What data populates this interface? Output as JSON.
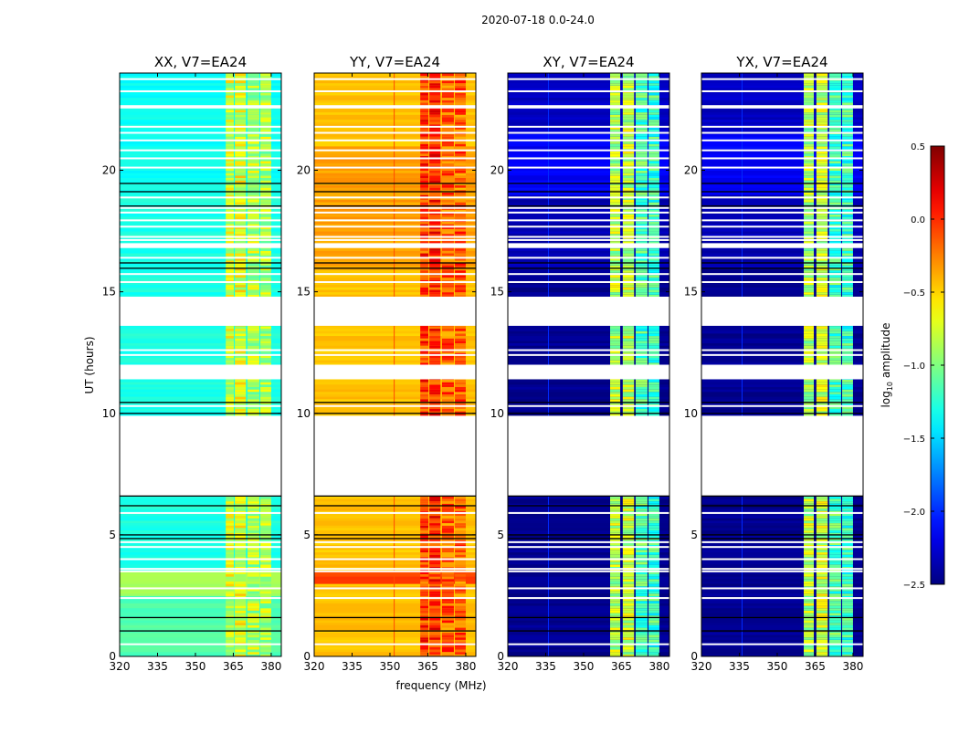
{
  "chart_data": {
    "type": "heatmap",
    "title": "2020-07-18 0.0-24.0",
    "xlabel": "frequency (MHz)",
    "ylabel": "UT (hours)",
    "xlim": [
      320,
      384
    ],
    "ylim": [
      0,
      24
    ],
    "xticks": [
      "320",
      "335",
      "350",
      "365",
      "380"
    ],
    "xtick_values": [
      320,
      335,
      350,
      365,
      380
    ],
    "yticks": [
      "0",
      "5",
      "10",
      "15",
      "20"
    ],
    "ytick_values": [
      0,
      5,
      10,
      15,
      20
    ],
    "colorbar": {
      "label_main": "log",
      "label_sub": "10",
      "label_rest": " amplitude",
      "range": [
        -2.5,
        0.5
      ],
      "colormap": "jet",
      "ticks": [
        "0.5",
        "0.0",
        "−0.5",
        "−1.0",
        "−1.5",
        "−2.0",
        "−2.5"
      ],
      "tick_values": [
        0.5,
        0.0,
        -0.5,
        -1.0,
        -1.5,
        -2.0,
        -2.5
      ]
    },
    "flagged_gaps_hours": [
      [
        6.6,
        9.9
      ],
      [
        11.4,
        12.0
      ],
      [
        13.6,
        14.8
      ],
      [
        16.8,
        17.0
      ]
    ],
    "white_flag_lines_hours": [
      23.75,
      23.25,
      22.64,
      22.58,
      21.79,
      21.54,
      21.23,
      20.82,
      20.49,
      20.11,
      18.88,
      18.45,
      18.26,
      17.94,
      17.68,
      17.26,
      17.13,
      16.4,
      15.73,
      15.4,
      12.6,
      12.4,
      10.3,
      5.9,
      4.7,
      4.5,
      4.0,
      3.6,
      3.5,
      2.8,
      2.4,
      0.5
    ],
    "black_lines_hours": [
      19.46,
      19.12,
      18.53,
      16.19,
      15.97,
      10.45,
      10.0,
      6.6,
      6.2,
      5.0,
      4.85,
      1.6,
      1.05
    ],
    "panels": [
      {
        "title": "XX, V7=EA24",
        "base": [
          [
            0,
            2.5,
            -1.15
          ],
          [
            2.5,
            3.5,
            -0.9
          ],
          [
            3.5,
            19,
            -1.3
          ],
          [
            19,
            24,
            -1.35
          ]
        ],
        "rfi_columns": [
          [
            362,
            365.2,
            -0.75
          ],
          [
            365.6,
            370,
            -0.7
          ],
          [
            370.6,
            375.3,
            -0.85
          ],
          [
            375.7,
            380,
            -0.85
          ]
        ],
        "narrow_channels": []
      },
      {
        "title": "YY, V7=EA24",
        "base": [
          [
            0,
            3.0,
            -0.45
          ],
          [
            3.0,
            3.5,
            -0.05
          ],
          [
            3.5,
            16,
            -0.45
          ],
          [
            16,
            21,
            -0.35
          ],
          [
            21,
            24,
            -0.45
          ]
        ],
        "rfi_columns": [
          [
            362,
            365.2,
            -0.05
          ],
          [
            365.6,
            370,
            0.0
          ],
          [
            370.6,
            375.3,
            -0.15
          ],
          [
            375.7,
            380,
            -0.15
          ]
        ],
        "narrow_channels": [
          [
            351.5,
            -0.1
          ]
        ]
      },
      {
        "title": "XY, V7=EA24",
        "base": [
          [
            0,
            16,
            -2.45
          ],
          [
            16,
            19,
            -2.35
          ],
          [
            19,
            21.5,
            -2.15
          ],
          [
            21.5,
            24,
            -2.3
          ]
        ],
        "rfi_columns": [
          [
            360.5,
            364.5,
            -0.85
          ],
          [
            365.5,
            370,
            -0.8
          ],
          [
            370.6,
            375.3,
            -1.15
          ],
          [
            375.7,
            380,
            -1.2
          ]
        ],
        "narrow_channels": [
          [
            335.9,
            -2.0
          ]
        ]
      },
      {
        "title": "YX, V7=EA24",
        "base": [
          [
            0,
            16,
            -2.45
          ],
          [
            16,
            19,
            -2.35
          ],
          [
            19,
            21.5,
            -2.15
          ],
          [
            21.5,
            24,
            -2.3
          ]
        ],
        "rfi_columns": [
          [
            360.5,
            364.5,
            -0.85
          ],
          [
            365.5,
            370,
            -0.8
          ],
          [
            370.6,
            375.3,
            -1.15
          ],
          [
            375.7,
            380,
            -1.2
          ]
        ],
        "narrow_channels": [
          [
            335.9,
            -2.0
          ]
        ]
      }
    ]
  }
}
